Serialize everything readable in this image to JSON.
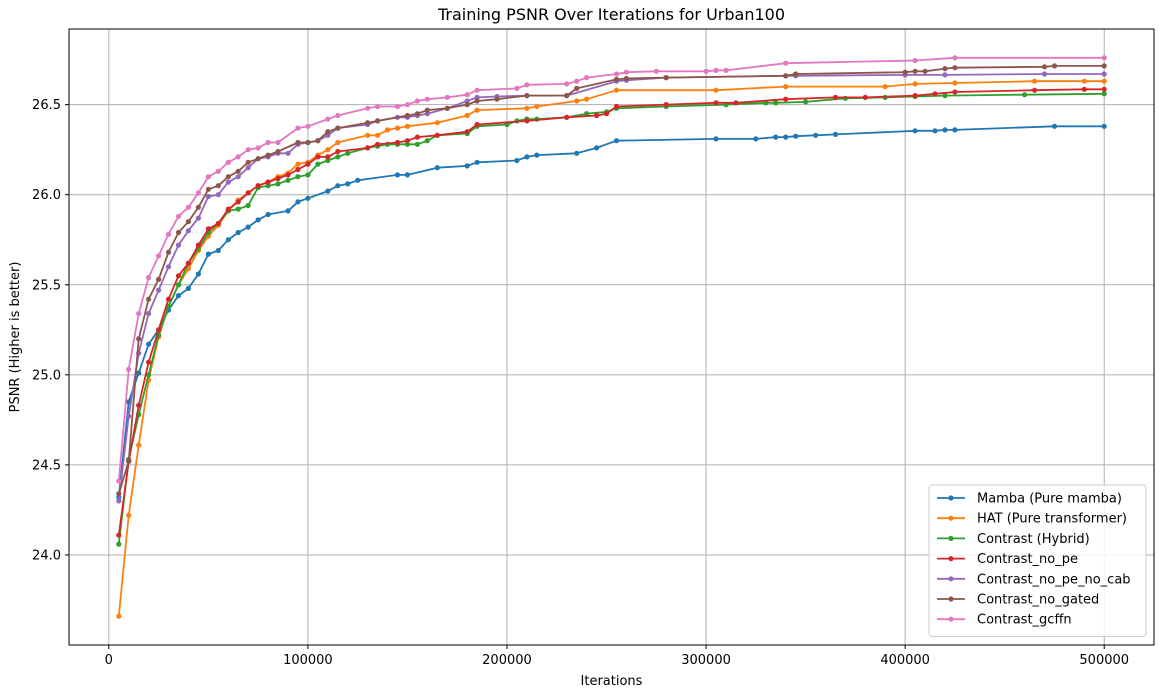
{
  "chart_data": {
    "type": "line",
    "title": "Training PSNR Over Iterations for Urban100",
    "xlabel": "Iterations",
    "ylabel": "PSNR (Higher is better)",
    "xlim": [
      -20000,
      525000
    ],
    "ylim": [
      23.5,
      26.92
    ],
    "xticks": [
      0,
      100000,
      200000,
      300000,
      400000,
      500000
    ],
    "xtick_labels": [
      "0",
      "100000",
      "200000",
      "300000",
      "400000",
      "500000"
    ],
    "yticks": [
      24.0,
      24.5,
      25.0,
      25.5,
      26.0,
      26.5
    ],
    "ytick_labels": [
      "24.0",
      "24.5",
      "25.0",
      "25.5",
      "26.0",
      "26.5"
    ],
    "grid": true,
    "legend_position": "lower-right",
    "series": [
      {
        "name": "Mamba (Pure mamba)",
        "color": "#1f77b4",
        "x": [
          5000,
          10000,
          15000,
          20000,
          25000,
          30000,
          35000,
          40000,
          45000,
          50000,
          55000,
          60000,
          65000,
          70000,
          75000,
          80000,
          90000,
          95000,
          100000,
          110000,
          115000,
          120000,
          125000,
          145000,
          150000,
          165000,
          180000,
          185000,
          205000,
          210000,
          215000,
          235000,
          245000,
          255000,
          305000,
          325000,
          335000,
          340000,
          345000,
          355000,
          365000,
          405000,
          415000,
          420000,
          425000,
          475000,
          500000
        ],
        "y": [
          24.32,
          24.85,
          25.01,
          25.17,
          25.25,
          25.36,
          25.44,
          25.48,
          25.56,
          25.67,
          25.69,
          25.75,
          25.79,
          25.82,
          25.86,
          25.89,
          25.91,
          25.96,
          25.98,
          26.02,
          26.05,
          26.06,
          26.08,
          26.11,
          26.11,
          26.15,
          26.16,
          26.18,
          26.19,
          26.21,
          26.22,
          26.23,
          26.26,
          26.3,
          26.31,
          26.31,
          26.32,
          26.32,
          26.325,
          26.33,
          26.335,
          26.355,
          26.355,
          26.36,
          26.36,
          26.38,
          26.38
        ]
      },
      {
        "name": "HAT (Pure transformer)",
        "color": "#ff7f0e",
        "x": [
          5000,
          10000,
          15000,
          20000,
          25000,
          30000,
          35000,
          40000,
          45000,
          50000,
          55000,
          60000,
          65000,
          70000,
          75000,
          80000,
          85000,
          90000,
          95000,
          100000,
          105000,
          110000,
          115000,
          130000,
          135000,
          140000,
          145000,
          150000,
          165000,
          180000,
          185000,
          210000,
          215000,
          235000,
          240000,
          255000,
          305000,
          340000,
          390000,
          405000,
          425000,
          465000,
          490000,
          500000
        ],
        "y": [
          23.66,
          24.22,
          24.61,
          24.97,
          25.21,
          25.38,
          25.5,
          25.59,
          25.69,
          25.77,
          25.83,
          25.91,
          25.97,
          26.01,
          26.05,
          26.07,
          26.1,
          26.12,
          26.17,
          26.18,
          26.22,
          26.25,
          26.29,
          26.33,
          26.33,
          26.36,
          26.37,
          26.38,
          26.4,
          26.44,
          26.47,
          26.48,
          26.49,
          26.52,
          26.53,
          26.58,
          26.58,
          26.6,
          26.6,
          26.615,
          26.62,
          26.63,
          26.63,
          26.63
        ]
      },
      {
        "name": "Contrast (Hybrid)",
        "color": "#2ca02c",
        "x": [
          5000,
          10000,
          15000,
          20000,
          25000,
          30000,
          35000,
          40000,
          45000,
          50000,
          55000,
          60000,
          65000,
          70000,
          75000,
          80000,
          85000,
          90000,
          95000,
          100000,
          105000,
          110000,
          115000,
          120000,
          130000,
          135000,
          140000,
          145000,
          150000,
          155000,
          160000,
          165000,
          180000,
          185000,
          200000,
          205000,
          210000,
          215000,
          230000,
          240000,
          250000,
          255000,
          280000,
          310000,
          330000,
          335000,
          350000,
          370000,
          390000,
          405000,
          420000,
          460000,
          500000
        ],
        "y": [
          24.06,
          24.53,
          24.78,
          25.0,
          25.22,
          25.38,
          25.5,
          25.62,
          25.7,
          25.79,
          25.84,
          25.91,
          25.92,
          25.94,
          26.04,
          26.05,
          26.06,
          26.08,
          26.1,
          26.11,
          26.17,
          26.19,
          26.21,
          26.23,
          26.26,
          26.27,
          26.28,
          26.28,
          26.28,
          26.28,
          26.3,
          26.33,
          26.34,
          26.38,
          26.39,
          26.41,
          26.42,
          26.42,
          26.43,
          26.45,
          26.46,
          26.48,
          26.49,
          26.5,
          26.51,
          26.51,
          26.515,
          26.535,
          26.54,
          26.545,
          26.55,
          26.555,
          26.56
        ]
      },
      {
        "name": "Contrast_no_pe",
        "color": "#d62728",
        "x": [
          5000,
          10000,
          15000,
          20000,
          25000,
          30000,
          35000,
          40000,
          45000,
          50000,
          55000,
          60000,
          65000,
          70000,
          75000,
          80000,
          85000,
          90000,
          95000,
          100000,
          105000,
          110000,
          115000,
          130000,
          135000,
          145000,
          150000,
          155000,
          165000,
          180000,
          185000,
          210000,
          230000,
          245000,
          250000,
          255000,
          280000,
          305000,
          315000,
          340000,
          365000,
          380000,
          405000,
          415000,
          425000,
          465000,
          490000,
          500000
        ],
        "y": [
          24.11,
          24.52,
          24.83,
          25.07,
          25.25,
          25.42,
          25.55,
          25.62,
          25.72,
          25.81,
          25.84,
          25.92,
          25.96,
          26.01,
          26.05,
          26.07,
          26.09,
          26.11,
          26.14,
          26.17,
          26.21,
          26.21,
          26.24,
          26.26,
          26.28,
          26.29,
          26.3,
          26.32,
          26.33,
          26.35,
          26.39,
          26.41,
          26.43,
          26.44,
          26.45,
          26.49,
          26.5,
          26.51,
          26.51,
          26.53,
          26.54,
          26.54,
          26.55,
          26.56,
          26.57,
          26.58,
          26.585,
          26.585
        ]
      },
      {
        "name": "Contrast_no_pe_no_cab",
        "color": "#9467bd",
        "x": [
          5000,
          10000,
          15000,
          20000,
          25000,
          30000,
          35000,
          40000,
          45000,
          50000,
          55000,
          60000,
          65000,
          70000,
          75000,
          80000,
          85000,
          90000,
          95000,
          100000,
          105000,
          110000,
          115000,
          130000,
          135000,
          145000,
          150000,
          155000,
          160000,
          170000,
          180000,
          185000,
          195000,
          210000,
          230000,
          255000,
          260000,
          280000,
          340000,
          345000,
          400000,
          420000,
          470000,
          500000
        ],
        "y": [
          24.3,
          24.77,
          25.12,
          25.34,
          25.47,
          25.6,
          25.72,
          25.8,
          25.87,
          25.99,
          26.0,
          26.07,
          26.1,
          26.15,
          26.2,
          26.21,
          26.23,
          26.23,
          26.28,
          26.29,
          26.3,
          26.33,
          26.37,
          26.39,
          26.41,
          26.43,
          26.43,
          26.44,
          26.45,
          26.48,
          26.52,
          26.54,
          26.545,
          26.55,
          26.55,
          26.63,
          26.635,
          26.65,
          26.66,
          26.66,
          26.665,
          26.665,
          26.67,
          26.67
        ]
      },
      {
        "name": "Contrast_no_gated",
        "color": "#8c564b",
        "x": [
          5000,
          10000,
          15000,
          20000,
          25000,
          30000,
          35000,
          40000,
          45000,
          50000,
          55000,
          60000,
          65000,
          70000,
          75000,
          80000,
          85000,
          95000,
          100000,
          105000,
          110000,
          115000,
          130000,
          135000,
          150000,
          155000,
          160000,
          170000,
          180000,
          185000,
          195000,
          210000,
          230000,
          235000,
          255000,
          260000,
          280000,
          340000,
          345000,
          400000,
          405000,
          410000,
          420000,
          425000,
          470000,
          475000,
          500000
        ],
        "y": [
          24.34,
          24.52,
          25.2,
          25.42,
          25.53,
          25.68,
          25.79,
          25.85,
          25.93,
          26.03,
          26.05,
          26.1,
          26.13,
          26.18,
          26.2,
          26.22,
          26.24,
          26.29,
          26.29,
          26.3,
          26.35,
          26.37,
          26.4,
          26.41,
          26.44,
          26.45,
          26.47,
          26.48,
          26.5,
          26.52,
          26.53,
          26.55,
          26.55,
          26.59,
          26.64,
          26.645,
          26.65,
          26.66,
          26.67,
          26.68,
          26.685,
          26.685,
          26.7,
          26.705,
          26.71,
          26.715,
          26.715
        ]
      },
      {
        "name": "Contrast_gcffn",
        "color": "#e377c2",
        "x": [
          5000,
          10000,
          15000,
          20000,
          25000,
          30000,
          35000,
          40000,
          45000,
          50000,
          55000,
          60000,
          65000,
          70000,
          75000,
          80000,
          85000,
          95000,
          100000,
          110000,
          115000,
          130000,
          135000,
          145000,
          150000,
          155000,
          160000,
          170000,
          180000,
          185000,
          205000,
          210000,
          230000,
          235000,
          240000,
          255000,
          260000,
          275000,
          300000,
          305000,
          310000,
          340000,
          405000,
          425000,
          500000
        ],
        "y": [
          24.41,
          25.03,
          25.34,
          25.54,
          25.66,
          25.78,
          25.88,
          25.93,
          26.01,
          26.1,
          26.13,
          26.18,
          26.21,
          26.25,
          26.26,
          26.29,
          26.29,
          26.37,
          26.38,
          26.42,
          26.44,
          26.48,
          26.49,
          26.49,
          26.5,
          26.52,
          26.53,
          26.54,
          26.555,
          26.58,
          26.59,
          26.61,
          26.615,
          26.63,
          26.65,
          26.67,
          26.68,
          26.685,
          26.685,
          26.69,
          26.69,
          26.73,
          26.745,
          26.76,
          26.76
        ]
      }
    ]
  }
}
